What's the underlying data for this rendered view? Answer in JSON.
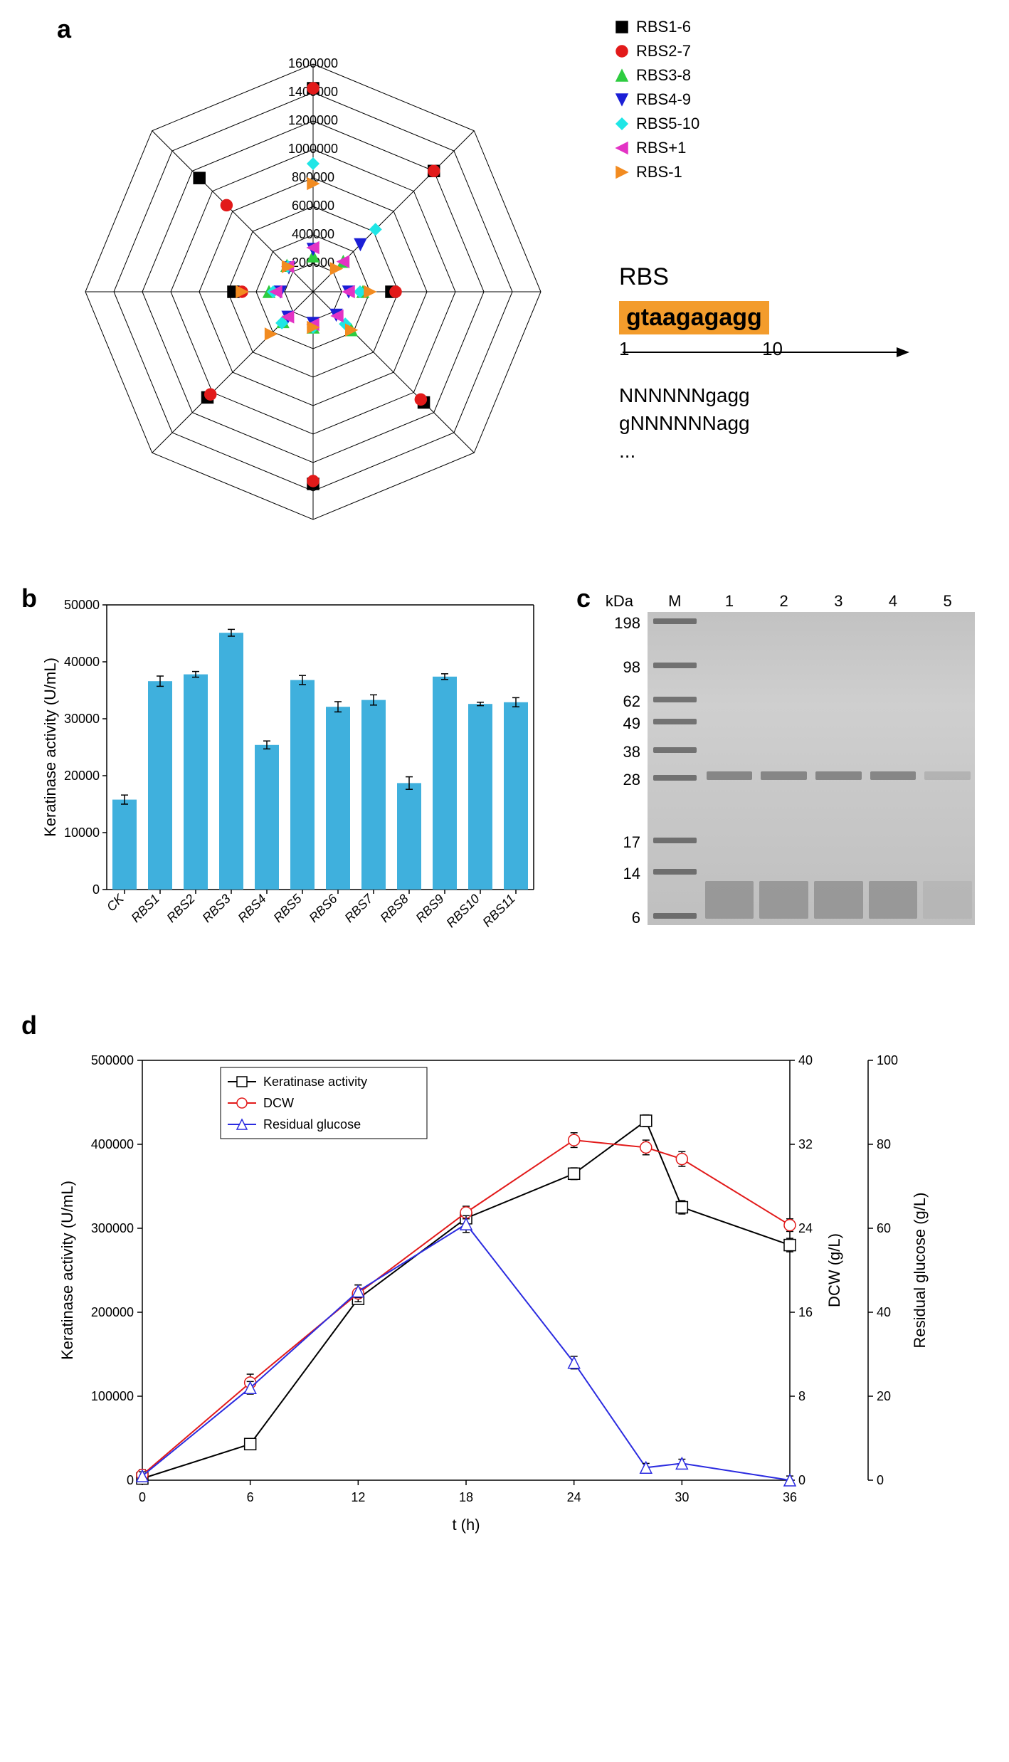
{
  "panelA": {
    "label": "a",
    "radar": {
      "axes_count": 8,
      "rings": [
        200000,
        400000,
        600000,
        800000,
        1000000,
        1200000,
        1400000,
        1600000
      ],
      "tick_labels": [
        "200000",
        "400000",
        "600000",
        "800000",
        "1000000",
        "1200000",
        "1400000",
        "1600000"
      ],
      "max": 1600000,
      "series": [
        {
          "name": "RBS1-6",
          "marker": "square",
          "color": "#000000",
          "values": [
            1430000,
            1200000,
            550000,
            1100000,
            1350000,
            1050000,
            560000,
            1130000
          ]
        },
        {
          "name": "RBS2-7",
          "marker": "circle",
          "color": "#e21a1a",
          "values": [
            1430000,
            1200000,
            580000,
            1070000,
            1330000,
            1020000,
            500000,
            860000
          ]
        },
        {
          "name": "RBS3-8",
          "marker": "triangle-up",
          "color": "#2ecc40",
          "values": [
            250000,
            300000,
            350000,
            380000,
            250000,
            300000,
            310000,
            260000
          ]
        },
        {
          "name": "RBS4-9",
          "marker": "triangle-down",
          "color": "#1b1fd6",
          "values": [
            300000,
            470000,
            250000,
            230000,
            220000,
            250000,
            230000,
            240000
          ]
        },
        {
          "name": "RBS5-10",
          "marker": "diamond",
          "color": "#1fe6e6",
          "values": [
            900000,
            620000,
            330000,
            320000,
            250000,
            310000,
            280000,
            250000
          ]
        },
        {
          "name": "RBS+1",
          "marker": "triangle-left",
          "color": "#e333c4",
          "values": [
            310000,
            300000,
            250000,
            240000,
            230000,
            250000,
            260000,
            250000
          ]
        },
        {
          "name": "RBS-1",
          "marker": "triangle-right",
          "color": "#f28b20",
          "values": [
            760000,
            230000,
            400000,
            380000,
            250000,
            420000,
            500000,
            250000
          ]
        }
      ]
    },
    "legend": [
      "RBS1-6",
      "RBS2-7",
      "RBS3-8",
      "RBS4-9",
      "RBS5-10",
      "RBS+1",
      "RBS-1"
    ],
    "rbs_diagram": {
      "title": "RBS",
      "sequence": "gtaagagagg",
      "left_num": "1",
      "right_num": "10",
      "rows": [
        "NNNNNNgagg",
        "gNNNNNNagg",
        "..."
      ]
    }
  },
  "panelB": {
    "label": "b",
    "type": "bar",
    "ylabel": "Keratinase activity (U/mL)",
    "ylim": [
      0,
      50000
    ],
    "ytick_step": 10000,
    "bar_color": "#3fb0dd",
    "categories": [
      "CK",
      "RBS1",
      "RBS2",
      "RBS3",
      "RBS4",
      "RBS5",
      "RBS6",
      "RBS7",
      "RBS8",
      "RBS9",
      "RBS10",
      "RBS11"
    ],
    "values": [
      15800,
      36600,
      37800,
      45100,
      25400,
      36800,
      32100,
      33300,
      18700,
      37400,
      32600,
      32900
    ],
    "errors": [
      800,
      900,
      500,
      600,
      700,
      800,
      900,
      900,
      1100,
      500,
      300,
      800
    ],
    "bar_width": 0.68
  },
  "panelC": {
    "label": "c",
    "lanes": [
      "M",
      "1",
      "2",
      "3",
      "4",
      "5"
    ],
    "kda_label": "kDa",
    "kda": [
      198,
      98,
      62,
      49,
      38,
      28,
      17,
      14,
      6
    ],
    "kda_y": [
      0.03,
      0.17,
      0.28,
      0.35,
      0.44,
      0.53,
      0.73,
      0.83,
      0.97
    ],
    "band_y": 0.52,
    "smear_y": [
      0.86,
      0.98
    ]
  },
  "panelD": {
    "label": "d",
    "xlabel": "t (h)",
    "y1_label": "Keratinase activity (U/mL)",
    "y2_label": "DCW (g/L)",
    "y3_label": "Residual glucose (g/L)",
    "x_ticks": [
      0,
      6,
      12,
      18,
      24,
      30,
      36
    ],
    "xlim": [
      0,
      36
    ],
    "y1_lim": [
      0,
      500000
    ],
    "y1_tick_step": 100000,
    "y2_lim": [
      0,
      40
    ],
    "y2_tick_step": 8,
    "y3_lim": [
      0,
      100
    ],
    "y3_tick_step": 20,
    "legend": [
      "Keratinase activity",
      "DCW",
      "Residual glucose"
    ],
    "series": [
      {
        "name": "Keratinase activity",
        "axis": "y1",
        "marker": "square",
        "line_color": "#000000",
        "marker_fill": "#ffffff",
        "marker_stroke": "#000000",
        "x": [
          0,
          6,
          12,
          18,
          24,
          28,
          30,
          36
        ],
        "y": [
          2000,
          43000,
          216000,
          312000,
          365000,
          428000,
          325000,
          280000
        ],
        "err": [
          5000,
          5000,
          6000,
          6000,
          7000,
          7000,
          8000,
          8000
        ]
      },
      {
        "name": "DCW",
        "axis": "y2",
        "marker": "circle",
        "line_color": "#e21a1a",
        "marker_fill": "#ffffff",
        "marker_stroke": "#e21a1a",
        "x": [
          0,
          6,
          12,
          18,
          24,
          28,
          30,
          36
        ],
        "y": [
          0.5,
          9.3,
          17.8,
          25.5,
          32.4,
          31.7,
          30.6,
          24.3
        ],
        "err": [
          0.5,
          0.8,
          0.8,
          0.6,
          0.7,
          0.7,
          0.7,
          0.6
        ]
      },
      {
        "name": "Residual glucose",
        "axis": "y3",
        "marker": "triangle-up",
        "line_color": "#2b2be0",
        "marker_fill": "#ffffff",
        "marker_stroke": "#2b2be0",
        "x": [
          0,
          6,
          12,
          18,
          24,
          28,
          30,
          36
        ],
        "y": [
          1,
          22,
          45,
          61,
          28,
          3,
          4,
          0
        ],
        "err": [
          1,
          1.5,
          1.5,
          2,
          1.5,
          1,
          1,
          1
        ]
      }
    ]
  }
}
